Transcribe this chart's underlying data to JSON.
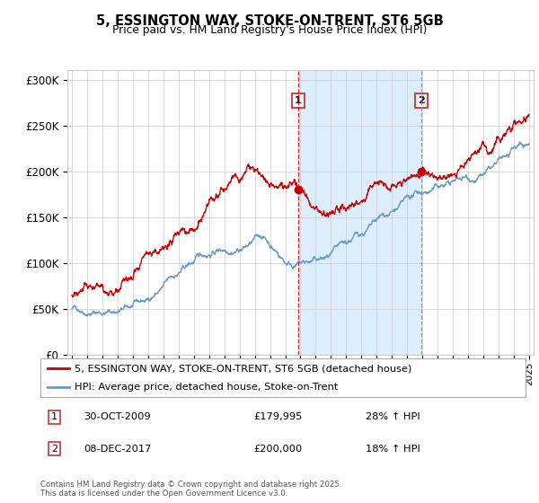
{
  "title": "5, ESSINGTON WAY, STOKE-ON-TRENT, ST6 5GB",
  "subtitle": "Price paid vs. HM Land Registry's House Price Index (HPI)",
  "ylim": [
    0,
    310000
  ],
  "yticks": [
    0,
    50000,
    100000,
    150000,
    200000,
    250000,
    300000
  ],
  "ytick_labels": [
    "£0",
    "£50K",
    "£100K",
    "£150K",
    "£200K",
    "£250K",
    "£300K"
  ],
  "year_start": 1995,
  "year_end": 2025,
  "sale1_date": 2009.83,
  "sale1_price": 179995,
  "sale1_label": "1",
  "sale1_text": "30-OCT-2009",
  "sale1_price_text": "£179,995",
  "sale1_hpi_text": "28% ↑ HPI",
  "sale2_date": 2017.93,
  "sale2_price": 200000,
  "sale2_label": "2",
  "sale2_text": "08-DEC-2017",
  "sale2_price_text": "£200,000",
  "sale2_hpi_text": "18% ↑ HPI",
  "red_color": "#cc0000",
  "blue_color": "#6699cc",
  "shading_color": "#ddeeff",
  "background_color": "#ffffff",
  "grid_color": "#cccccc",
  "legend_line1": "5, ESSINGTON WAY, STOKE-ON-TRENT, ST6 5GB (detached house)",
  "legend_line2": "HPI: Average price, detached house, Stoke-on-Trent",
  "footer": "Contains HM Land Registry data © Crown copyright and database right 2025.\nThis data is licensed under the Open Government Licence v3.0."
}
